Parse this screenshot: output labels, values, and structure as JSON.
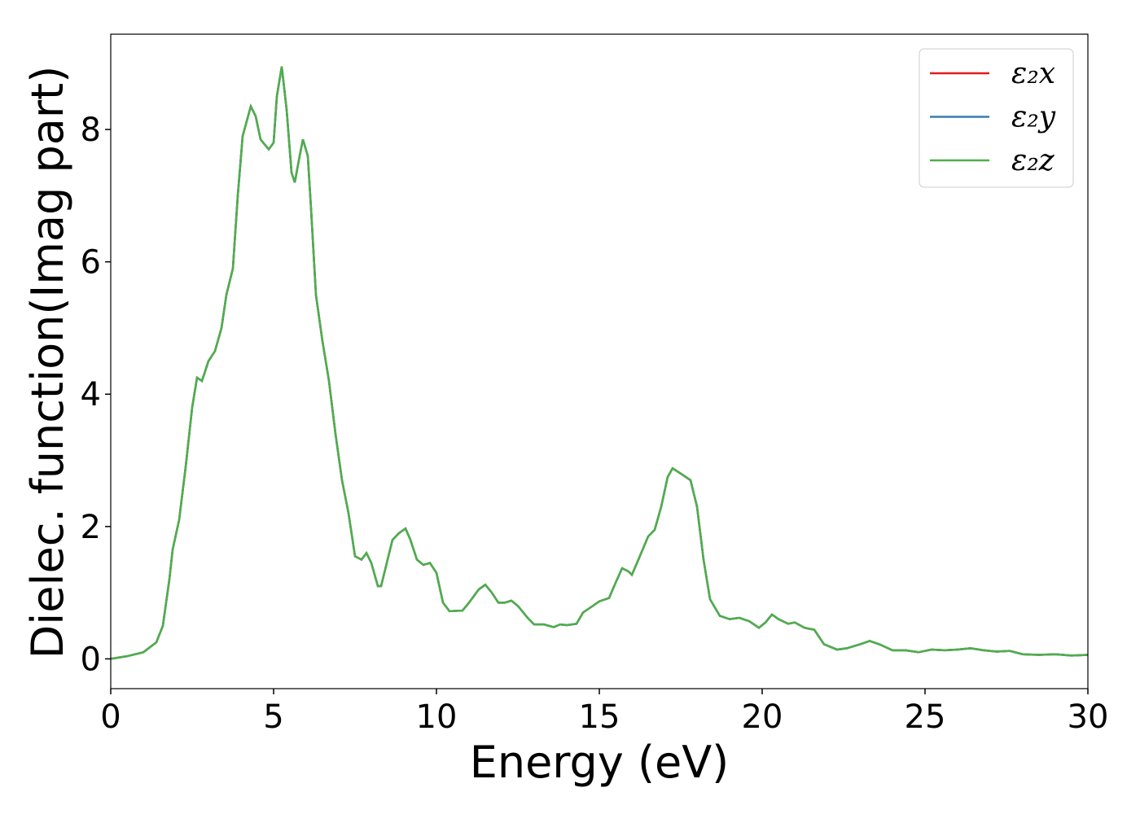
{
  "chart_data": {
    "type": "line",
    "xlabel": "Energy (eV)",
    "ylabel": "Dielec. function(Imag part)",
    "x": [
      0,
      0.5,
      1.0,
      1.4,
      1.6,
      1.8,
      1.9,
      2.1,
      2.3,
      2.5,
      2.65,
      2.8,
      3.0,
      3.2,
      3.4,
      3.55,
      3.75,
      3.9,
      4.05,
      4.3,
      4.45,
      4.6,
      4.85,
      5.0,
      5.1,
      5.25,
      5.4,
      5.55,
      5.65,
      5.8,
      5.9,
      6.05,
      6.15,
      6.3,
      6.5,
      6.7,
      6.9,
      7.1,
      7.3,
      7.5,
      7.7,
      7.85,
      8.0,
      8.2,
      8.3,
      8.5,
      8.65,
      8.85,
      9.05,
      9.2,
      9.4,
      9.6,
      9.8,
      10.0,
      10.2,
      10.4,
      10.8,
      11.0,
      11.3,
      11.5,
      11.7,
      11.9,
      12.1,
      12.3,
      12.5,
      12.8,
      13.0,
      13.3,
      13.6,
      13.8,
      14.0,
      14.3,
      14.5,
      14.8,
      15.0,
      15.3,
      15.5,
      15.7,
      15.9,
      16.0,
      16.2,
      16.5,
      16.7,
      16.9,
      17.1,
      17.25,
      17.5,
      17.8,
      18.0,
      18.2,
      18.4,
      18.7,
      19.0,
      19.3,
      19.6,
      19.9,
      20.1,
      20.3,
      20.5,
      20.8,
      21.0,
      21.3,
      21.6,
      21.9,
      22.3,
      22.6,
      23.0,
      23.3,
      23.6,
      24.0,
      24.4,
      24.8,
      25.2,
      25.6,
      26.0,
      26.4,
      26.8,
      27.2,
      27.6,
      28.0,
      28.5,
      29.0,
      29.5,
      30.0
    ],
    "series": [
      {
        "name": "ε₂x",
        "color": "#e41a1c",
        "values": [
          0.0,
          0.04,
          0.1,
          0.25,
          0.5,
          1.2,
          1.65,
          2.1,
          2.9,
          3.8,
          4.25,
          4.2,
          4.5,
          4.65,
          5.0,
          5.5,
          5.9,
          7.0,
          7.9,
          8.35,
          8.2,
          7.85,
          7.7,
          7.8,
          8.5,
          8.95,
          8.3,
          7.35,
          7.2,
          7.6,
          7.85,
          7.6,
          6.8,
          5.5,
          4.8,
          4.2,
          3.4,
          2.7,
          2.2,
          1.55,
          1.5,
          1.6,
          1.45,
          1.1,
          1.1,
          1.5,
          1.8,
          1.9,
          1.97,
          1.8,
          1.5,
          1.42,
          1.45,
          1.3,
          0.85,
          0.72,
          0.73,
          0.85,
          1.05,
          1.12,
          1.0,
          0.85,
          0.85,
          0.88,
          0.8,
          0.62,
          0.52,
          0.52,
          0.48,
          0.52,
          0.51,
          0.53,
          0.7,
          0.8,
          0.87,
          0.92,
          1.15,
          1.37,
          1.32,
          1.27,
          1.5,
          1.85,
          1.95,
          2.3,
          2.75,
          2.88,
          2.8,
          2.7,
          2.3,
          1.5,
          0.9,
          0.65,
          0.6,
          0.62,
          0.57,
          0.47,
          0.55,
          0.67,
          0.6,
          0.53,
          0.55,
          0.47,
          0.44,
          0.22,
          0.14,
          0.16,
          0.22,
          0.27,
          0.22,
          0.13,
          0.13,
          0.1,
          0.14,
          0.13,
          0.14,
          0.16,
          0.13,
          0.11,
          0.12,
          0.07,
          0.06,
          0.07,
          0.05,
          0.06
        ]
      },
      {
        "name": "ε₂y",
        "color": "#377eb8",
        "values": [
          0.0,
          0.04,
          0.1,
          0.25,
          0.5,
          1.2,
          1.65,
          2.1,
          2.9,
          3.8,
          4.25,
          4.2,
          4.5,
          4.65,
          5.0,
          5.5,
          5.9,
          7.0,
          7.9,
          8.35,
          8.2,
          7.85,
          7.7,
          7.8,
          8.5,
          8.95,
          8.3,
          7.35,
          7.2,
          7.6,
          7.85,
          7.6,
          6.8,
          5.5,
          4.8,
          4.2,
          3.4,
          2.7,
          2.2,
          1.55,
          1.5,
          1.6,
          1.45,
          1.1,
          1.1,
          1.5,
          1.8,
          1.9,
          1.97,
          1.8,
          1.5,
          1.42,
          1.45,
          1.3,
          0.85,
          0.72,
          0.73,
          0.85,
          1.05,
          1.12,
          1.0,
          0.85,
          0.85,
          0.88,
          0.8,
          0.62,
          0.52,
          0.52,
          0.48,
          0.52,
          0.51,
          0.53,
          0.7,
          0.8,
          0.87,
          0.92,
          1.15,
          1.37,
          1.32,
          1.27,
          1.5,
          1.85,
          1.95,
          2.3,
          2.75,
          2.88,
          2.8,
          2.7,
          2.3,
          1.5,
          0.9,
          0.65,
          0.6,
          0.62,
          0.57,
          0.47,
          0.55,
          0.67,
          0.6,
          0.53,
          0.55,
          0.47,
          0.44,
          0.22,
          0.14,
          0.16,
          0.22,
          0.27,
          0.22,
          0.13,
          0.13,
          0.1,
          0.14,
          0.13,
          0.14,
          0.16,
          0.13,
          0.11,
          0.12,
          0.07,
          0.06,
          0.07,
          0.05,
          0.06
        ]
      },
      {
        "name": "ε₂z",
        "color": "#4daf4a",
        "values": [
          0.0,
          0.04,
          0.1,
          0.25,
          0.5,
          1.2,
          1.65,
          2.1,
          2.9,
          3.8,
          4.25,
          4.2,
          4.5,
          4.65,
          5.0,
          5.5,
          5.9,
          7.0,
          7.9,
          8.35,
          8.2,
          7.85,
          7.7,
          7.8,
          8.5,
          8.95,
          8.3,
          7.35,
          7.2,
          7.6,
          7.85,
          7.6,
          6.8,
          5.5,
          4.8,
          4.2,
          3.4,
          2.7,
          2.2,
          1.55,
          1.5,
          1.6,
          1.45,
          1.1,
          1.1,
          1.5,
          1.8,
          1.9,
          1.97,
          1.8,
          1.5,
          1.42,
          1.45,
          1.3,
          0.85,
          0.72,
          0.73,
          0.85,
          1.05,
          1.12,
          1.0,
          0.85,
          0.85,
          0.88,
          0.8,
          0.62,
          0.52,
          0.52,
          0.48,
          0.52,
          0.51,
          0.53,
          0.7,
          0.8,
          0.87,
          0.92,
          1.15,
          1.37,
          1.32,
          1.27,
          1.5,
          1.85,
          1.95,
          2.3,
          2.75,
          2.88,
          2.8,
          2.7,
          2.3,
          1.5,
          0.9,
          0.65,
          0.6,
          0.62,
          0.57,
          0.47,
          0.55,
          0.67,
          0.6,
          0.53,
          0.55,
          0.47,
          0.44,
          0.22,
          0.14,
          0.16,
          0.22,
          0.27,
          0.22,
          0.13,
          0.13,
          0.1,
          0.14,
          0.13,
          0.14,
          0.16,
          0.13,
          0.11,
          0.12,
          0.07,
          0.06,
          0.07,
          0.05,
          0.06
        ]
      }
    ],
    "xlim": [
      0,
      30
    ],
    "xticks": [
      0,
      5,
      10,
      15,
      20,
      25,
      30
    ],
    "ylim": [
      -0.45,
      9.44
    ],
    "yticks": [
      0,
      2,
      4,
      6,
      8
    ],
    "grid": false,
    "legend": "upper right"
  }
}
